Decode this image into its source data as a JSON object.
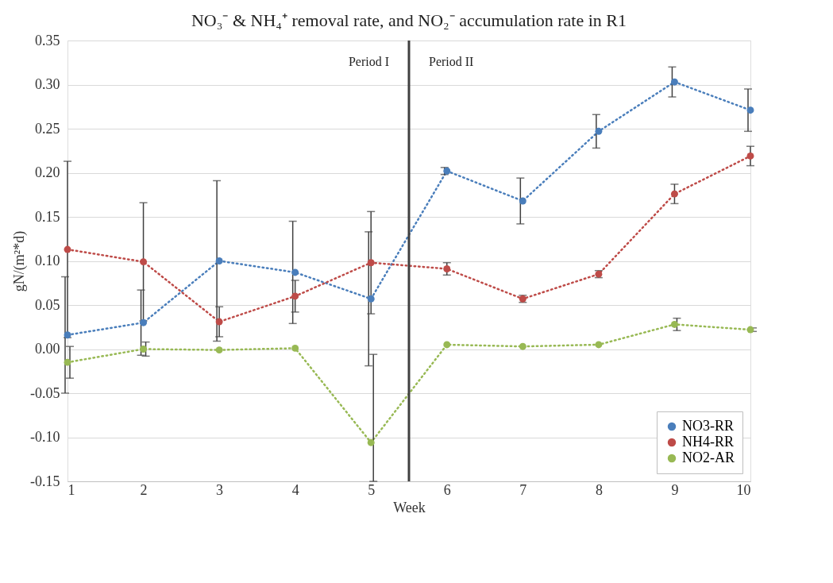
{
  "chart_data": {
    "type": "line",
    "title": "NO₃⁻ & NH₄⁺  removal rate, and NO₂⁻ accumulation rate in R1",
    "xlabel": "Week",
    "ylabel": "gN/(m²*d)",
    "x": [
      1,
      2,
      3,
      4,
      5,
      6,
      7,
      8,
      9,
      10
    ],
    "xlim": [
      1,
      10
    ],
    "xticks": [
      1,
      2,
      3,
      4,
      5,
      6,
      7,
      8,
      9,
      10
    ],
    "ylim": [
      -0.15,
      0.35
    ],
    "yticks": [
      {
        "value": -0.15,
        "label": "-0.15"
      },
      {
        "value": -0.1,
        "label": "-0.10"
      },
      {
        "value": -0.05,
        "label": "-0.05"
      },
      {
        "value": 0,
        "label": "0.00"
      },
      {
        "value": 0.05,
        "label": "0.05"
      },
      {
        "value": 0.1,
        "label": "0.10"
      },
      {
        "value": 0.15,
        "label": "0.15"
      },
      {
        "value": 0.2,
        "label": "0.20"
      },
      {
        "value": 0.25,
        "label": "0.25"
      },
      {
        "value": 0.3,
        "label": "0.30"
      },
      {
        "value": 0.35,
        "label": "0.35"
      }
    ],
    "series": [
      {
        "name": "NO3-RR",
        "color": "#4a7ebb",
        "values": [
          0.016,
          0.03,
          0.1,
          0.087,
          0.057,
          0.202,
          0.168,
          0.247,
          0.303,
          0.271
        ],
        "errors": [
          0.066,
          0.037,
          0.091,
          0.058,
          0.076,
          0.004,
          0.026,
          0.019,
          0.017,
          0.024
        ]
      },
      {
        "name": "NH4-RR",
        "color": "#be4b48",
        "values": [
          0.113,
          0.099,
          0.031,
          0.06,
          0.098,
          0.091,
          0.057,
          0.085,
          0.176,
          0.219
        ],
        "errors": [
          0.1,
          0.067,
          0.017,
          0.018,
          0.058,
          0.007,
          0.004,
          0.004,
          0.011,
          0.011
        ]
      },
      {
        "name": "NO2-AR",
        "color": "#98b954",
        "values": [
          -0.015,
          0.0,
          -0.001,
          0.001,
          -0.106,
          0.005,
          0.003,
          0.005,
          0.028,
          0.022
        ],
        "errors": [
          0.018,
          0.008,
          null,
          null,
          [
            -0.15,
            -0.006
          ],
          null,
          null,
          null,
          0.007,
          0.002
        ]
      }
    ],
    "ref_lines": [
      {
        "axis": "x",
        "value": 5.5,
        "color": "#404040"
      }
    ],
    "annotations": [
      "Period I",
      "Period II"
    ],
    "grid": "y",
    "legend": "bottom right",
    "marker": "circle",
    "line_style": "dotted"
  }
}
